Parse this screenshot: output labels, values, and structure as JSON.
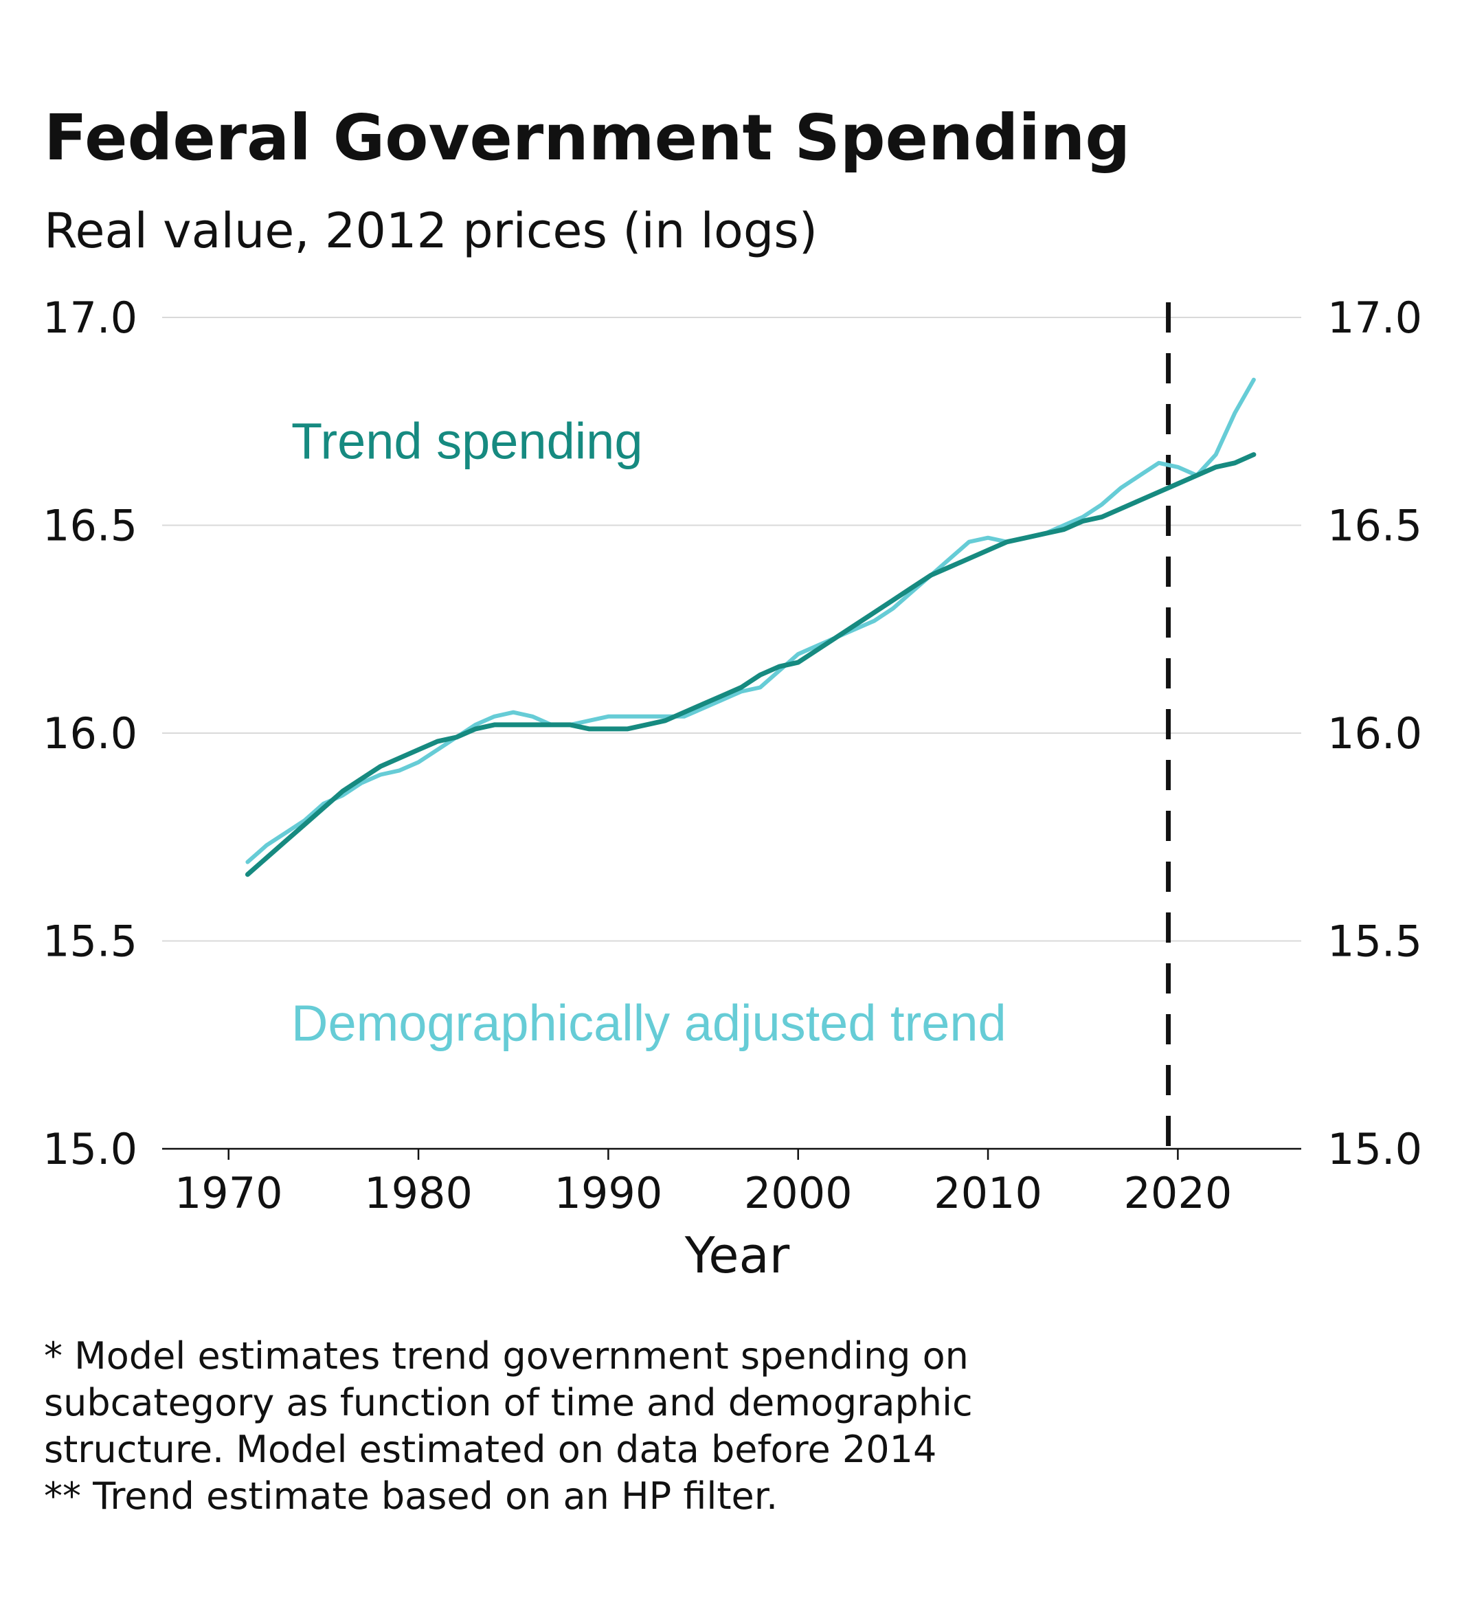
{
  "title": "Federal Government Spending",
  "subtitle": "Real value, 2012 prices (in logs)",
  "notes": [
    "* Model estimates trend government spending on",
    "subcategory as function of time and demographic",
    "structure. Model estimated on data before 2014",
    "** Trend estimate based on an HP filter."
  ],
  "colors": {
    "trend": "#168a80",
    "demographic": "#66ccd6",
    "grid": "#d9d9d9",
    "axis": "#111111",
    "vline": "#111111"
  },
  "chart_data": {
    "type": "line",
    "xlabel": "Year",
    "ylabel": "",
    "xlim": [
      1966.5,
      2026.5
    ],
    "ylim": [
      15.0,
      17.0
    ],
    "xticks": [
      1970,
      1980,
      1990,
      2000,
      2010,
      2020
    ],
    "yticks": [
      15.0,
      15.5,
      16.0,
      16.5,
      17.0
    ],
    "ytick_labels": [
      "15.0",
      "15.5",
      "16.0",
      "16.5",
      "17.0"
    ],
    "grid": "horizontal",
    "secondary_y_axis_mirrors_primary": true,
    "vertical_marker": {
      "x": 2019.5,
      "style": "dashed"
    },
    "annotations": [
      {
        "text": "Trend spending",
        "series": "trend",
        "x": 1976,
        "y": 16.7
      },
      {
        "text": "Demographically adjusted trend",
        "series": "demographic",
        "x": 1976,
        "y": 15.3
      }
    ],
    "series": [
      {
        "key": "demographic",
        "color": "#66ccd6",
        "x": [
          1971,
          1972,
          1973,
          1974,
          1975,
          1976,
          1977,
          1978,
          1979,
          1980,
          1981,
          1982,
          1983,
          1984,
          1985,
          1986,
          1987,
          1988,
          1989,
          1990,
          1991,
          1992,
          1993,
          1994,
          1995,
          1996,
          1997,
          1998,
          1999,
          2000,
          2001,
          2002,
          2003,
          2004,
          2005,
          2006,
          2007,
          2008,
          2009,
          2010,
          2011,
          2012,
          2013,
          2014,
          2015,
          2016,
          2017,
          2018,
          2019,
          2020,
          2021,
          2022,
          2023,
          2024
        ],
        "values": [
          15.69,
          15.73,
          15.76,
          15.79,
          15.83,
          15.85,
          15.88,
          15.9,
          15.91,
          15.93,
          15.96,
          15.99,
          16.02,
          16.04,
          16.05,
          16.04,
          16.02,
          16.02,
          16.03,
          16.04,
          16.04,
          16.04,
          16.04,
          16.04,
          16.06,
          16.08,
          16.1,
          16.11,
          16.15,
          16.19,
          16.21,
          16.23,
          16.25,
          16.27,
          16.3,
          16.34,
          16.38,
          16.42,
          16.46,
          16.47,
          16.46,
          16.47,
          16.48,
          16.5,
          16.52,
          16.55,
          16.59,
          16.62,
          16.65,
          16.64,
          16.62,
          16.67,
          16.77,
          16.85
        ]
      },
      {
        "key": "trend",
        "color": "#168a80",
        "x": [
          1971,
          1972,
          1973,
          1974,
          1975,
          1976,
          1977,
          1978,
          1979,
          1980,
          1981,
          1982,
          1983,
          1984,
          1985,
          1986,
          1987,
          1988,
          1989,
          1990,
          1991,
          1992,
          1993,
          1994,
          1995,
          1996,
          1997,
          1998,
          1999,
          2000,
          2001,
          2002,
          2003,
          2004,
          2005,
          2006,
          2007,
          2008,
          2009,
          2010,
          2011,
          2012,
          2013,
          2014,
          2015,
          2016,
          2017,
          2018,
          2019,
          2020,
          2021,
          2022,
          2023,
          2024
        ],
        "values": [
          15.66,
          15.7,
          15.74,
          15.78,
          15.82,
          15.86,
          15.89,
          15.92,
          15.94,
          15.96,
          15.98,
          15.99,
          16.01,
          16.02,
          16.02,
          16.02,
          16.02,
          16.02,
          16.01,
          16.01,
          16.01,
          16.02,
          16.03,
          16.05,
          16.07,
          16.09,
          16.11,
          16.14,
          16.16,
          16.17,
          16.2,
          16.23,
          16.26,
          16.29,
          16.32,
          16.35,
          16.38,
          16.4,
          16.42,
          16.44,
          16.46,
          16.47,
          16.48,
          16.49,
          16.51,
          16.52,
          16.54,
          16.56,
          16.58,
          16.6,
          16.62,
          16.64,
          16.65,
          16.67
        ]
      }
    ]
  }
}
